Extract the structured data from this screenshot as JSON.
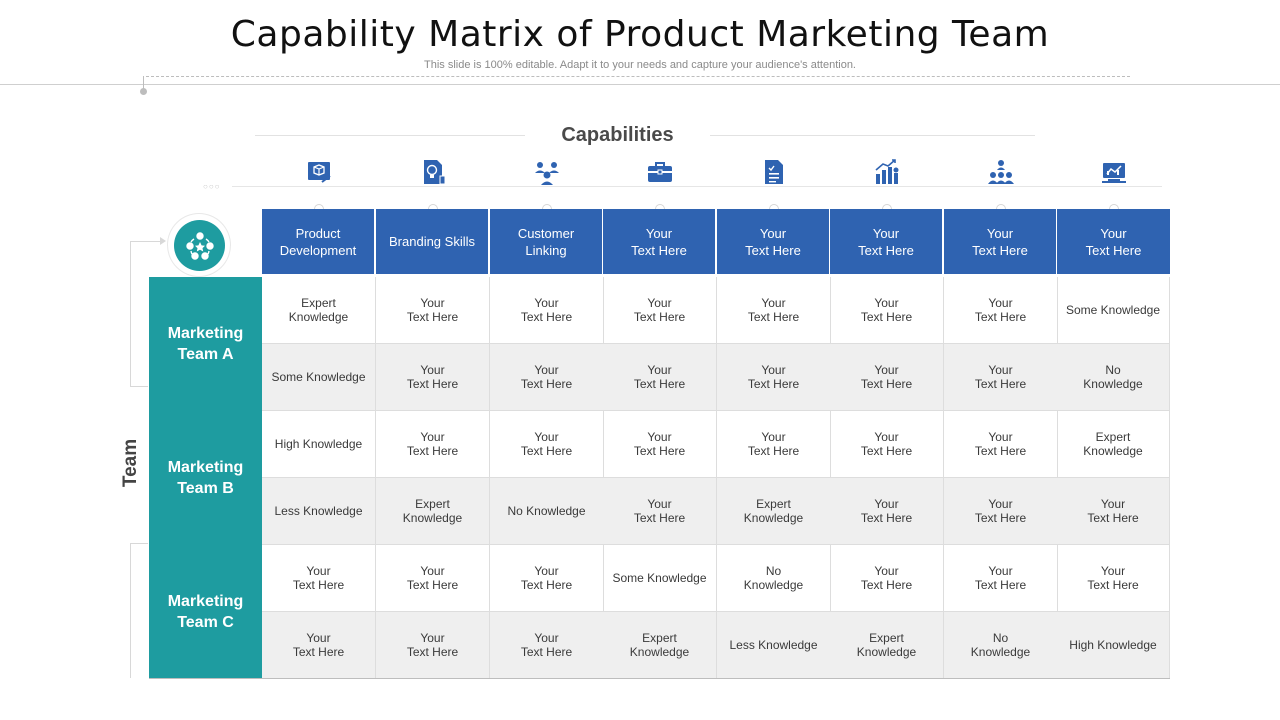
{
  "slide": {
    "title": "Capability Matrix of Product Marketing Team",
    "subtitle": "This slide is 100% editable. Adapt it to your needs and capture your audience's attention."
  },
  "matrix": {
    "capabilities_label": "Capabilities",
    "team_axis_label": "Team",
    "accent_colors": {
      "header_blue": "#2f63b1",
      "team_teal": "#1e9ca0",
      "alt_row_gray": "#efefef"
    },
    "capability_icons": [
      "cube-chart-icon",
      "lightbulb-document-icon",
      "users-network-icon",
      "briefcase-icon",
      "document-list-icon",
      "bar-chart-person-icon",
      "org-chart-icon",
      "monitor-chart-icon"
    ],
    "team_icon": "team-network-icon",
    "columns": [
      "Product\nDevelopment",
      "Branding Skills",
      "Customer\nLinking",
      "Your\nText Here",
      "Your\nText Here",
      "Your\nText Here",
      "Your\nText Here",
      "Your\nText Here"
    ],
    "teams": [
      {
        "name": "Marketing\nTeam A",
        "rows": [
          [
            "Expert\nKnowledge",
            "Your\nText Here",
            "Your\nText Here",
            "Your\nText Here",
            "Your\nText Here",
            "Your\nText Here",
            "Your\nText Here",
            "Some Knowledge"
          ],
          [
            "Some Knowledge",
            "Your\nText Here",
            "Your\nText Here",
            "Your\nText Here",
            "Your\nText Here",
            "Your\nText Here",
            "Your\nText Here",
            "No\nKnowledge"
          ]
        ]
      },
      {
        "name": "Marketing\nTeam B",
        "rows": [
          [
            "High Knowledge",
            "Your\nText Here",
            "Your\nText Here",
            "Your\nText Here",
            "Your\nText Here",
            "Your\nText Here",
            "Your\nText Here",
            "Expert\nKnowledge"
          ],
          [
            "Less Knowledge",
            "Expert\nKnowledge",
            "No Knowledge",
            "Your\nText Here",
            "Expert\nKnowledge",
            "Your\nText Here",
            "Your\nText Here",
            "Your\nText Here"
          ]
        ]
      },
      {
        "name": "Marketing\nTeam C",
        "rows": [
          [
            "Your\nText Here",
            "Your\nText Here",
            "Your\nText Here",
            "Some Knowledge",
            "No\nKnowledge",
            "Your\nText Here",
            "Your\nText Here",
            "Your\nText Here"
          ],
          [
            "Your\nText Here",
            "Your\nText Here",
            "Your\nText Here",
            "Expert\nKnowledge",
            "Less Knowledge",
            "Expert\nKnowledge",
            "No\nKnowledge",
            "High Knowledge"
          ]
        ]
      }
    ]
  }
}
